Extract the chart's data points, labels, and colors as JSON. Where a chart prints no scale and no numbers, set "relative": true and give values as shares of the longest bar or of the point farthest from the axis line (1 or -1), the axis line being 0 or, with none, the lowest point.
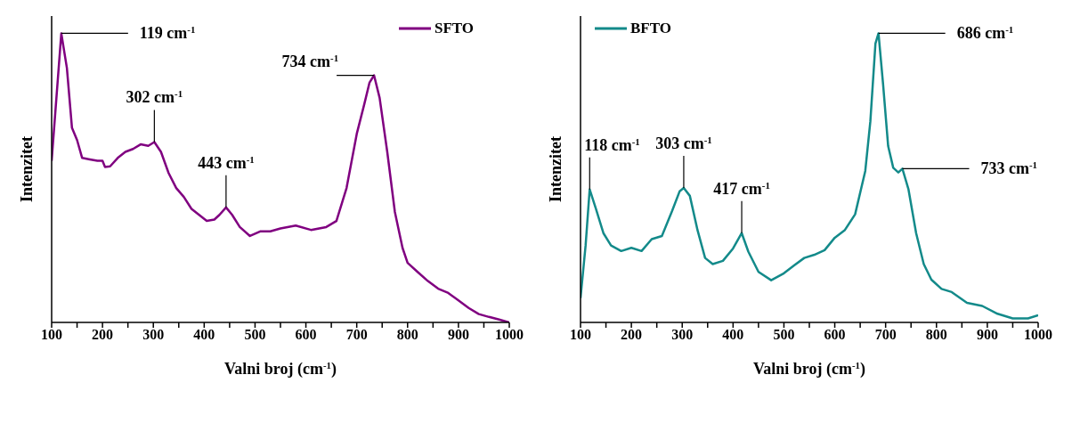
{
  "chart_data": [
    {
      "type": "line",
      "relative": true,
      "xlabel": "Valni broj (cm$^{-1}$)",
      "ylabel": "Intenzitet",
      "xlim": [
        100,
        1000
      ],
      "xticks": [
        100,
        {
          "value": 150,
          "label": null
        },
        200,
        {
          "value": 250,
          "label": null
        },
        300,
        {
          "value": 350,
          "label": null
        },
        400,
        {
          "value": 450,
          "label": null
        },
        500,
        {
          "value": 550,
          "label": null
        },
        600,
        {
          "value": 650,
          "label": null
        },
        700,
        {
          "value": 750,
          "label": null
        },
        800,
        {
          "value": 850,
          "label": null
        },
        900,
        {
          "value": 950,
          "label": null
        },
        1000
      ],
      "legend": "top right",
      "series": [
        {
          "name": "SFTO",
          "color": "#800080",
          "x": [
            100,
            119,
            130,
            140,
            150,
            160,
            175,
            190,
            200,
            205,
            215,
            230,
            245,
            260,
            275,
            290,
            302,
            315,
            330,
            345,
            360,
            375,
            390,
            405,
            420,
            430,
            443,
            455,
            470,
            490,
            510,
            530,
            550,
            580,
            610,
            640,
            660,
            680,
            700,
            715,
            725,
            734,
            745,
            760,
            775,
            790,
            800,
            820,
            840,
            860,
            880,
            900,
            920,
            940,
            960,
            980,
            1000
          ],
          "values": [
            0.559,
            1.0,
            0.88,
            0.673,
            0.631,
            0.569,
            0.564,
            0.559,
            0.559,
            0.538,
            0.54,
            0.569,
            0.59,
            0.6,
            0.616,
            0.611,
            0.624,
            0.59,
            0.517,
            0.465,
            0.434,
            0.393,
            0.372,
            0.351,
            0.356,
            0.372,
            0.398,
            0.372,
            0.33,
            0.299,
            0.315,
            0.315,
            0.325,
            0.335,
            0.32,
            0.33,
            0.351,
            0.465,
            0.652,
            0.756,
            0.829,
            0.855,
            0.777,
            0.59,
            0.382,
            0.258,
            0.206,
            0.174,
            0.143,
            0.117,
            0.102,
            0.076,
            0.05,
            0.029,
            0.019,
            0.01,
            0
          ]
        }
      ],
      "annotations": [
        {
          "text": "119 cm$^{-1}$",
          "x": 119,
          "y": 1.0
        },
        {
          "text": "302 cm$^{-1}$",
          "x": 302,
          "y": 0.624
        },
        {
          "text": "443 cm$^{-1}$",
          "x": 443,
          "y": 0.398
        },
        {
          "text": "734 cm$^{-1}$",
          "x": 734,
          "y": 0.855
        }
      ]
    },
    {
      "type": "line",
      "relative": true,
      "xlabel": "Valni broj (cm$^{-1}$)",
      "ylabel": "Intenzitet",
      "xlim": [
        100,
        1000
      ],
      "xticks": [
        100,
        {
          "value": 150,
          "label": null
        },
        200,
        {
          "value": 250,
          "label": null
        },
        300,
        {
          "value": 350,
          "label": null
        },
        400,
        {
          "value": 450,
          "label": null
        },
        500,
        {
          "value": 550,
          "label": null
        },
        600,
        {
          "value": 650,
          "label": null
        },
        700,
        {
          "value": 750,
          "label": null
        },
        800,
        {
          "value": 850,
          "label": null
        },
        900,
        {
          "value": 950,
          "label": null
        },
        1000
      ],
      "legend": "top left",
      "series": [
        {
          "name": "BFTO",
          "color": "#138a8a",
          "x": [
            100,
            110,
            118,
            130,
            145,
            160,
            180,
            200,
            220,
            240,
            260,
            280,
            295,
            303,
            315,
            330,
            345,
            360,
            380,
            400,
            417,
            430,
            450,
            475,
            500,
            520,
            540,
            560,
            580,
            600,
            620,
            640,
            660,
            670,
            680,
            686,
            695,
            705,
            715,
            725,
            733,
            745,
            760,
            775,
            790,
            810,
            830,
            860,
            890,
            920,
            950,
            980,
            1000
          ],
          "values": [
            0.084,
            0.266,
            0.46,
            0.395,
            0.309,
            0.266,
            0.247,
            0.258,
            0.247,
            0.288,
            0.299,
            0.385,
            0.454,
            0.465,
            0.438,
            0.32,
            0.223,
            0.202,
            0.213,
            0.256,
            0.309,
            0.245,
            0.175,
            0.146,
            0.17,
            0.197,
            0.223,
            0.234,
            0.25,
            0.293,
            0.32,
            0.374,
            0.524,
            0.696,
            0.965,
            1.0,
            0.825,
            0.61,
            0.535,
            0.519,
            0.532,
            0.46,
            0.309,
            0.202,
            0.148,
            0.116,
            0.105,
            0.068,
            0.057,
            0.03,
            0.014,
            0.014,
            0.025
          ]
        }
      ],
      "annotations": [
        {
          "text": "118 cm$^{-1}$",
          "x": 118,
          "y": 0.46
        },
        {
          "text": "303 cm$^{-1}$",
          "x": 303,
          "y": 0.465
        },
        {
          "text": "417 cm$^{-1}$",
          "x": 417,
          "y": 0.309
        },
        {
          "text": "686 cm$^{-1}$",
          "x": 686,
          "y": 1.0
        },
        {
          "text": "733 cm$^{-1}$",
          "x": 733,
          "y": 0.532
        }
      ]
    }
  ]
}
